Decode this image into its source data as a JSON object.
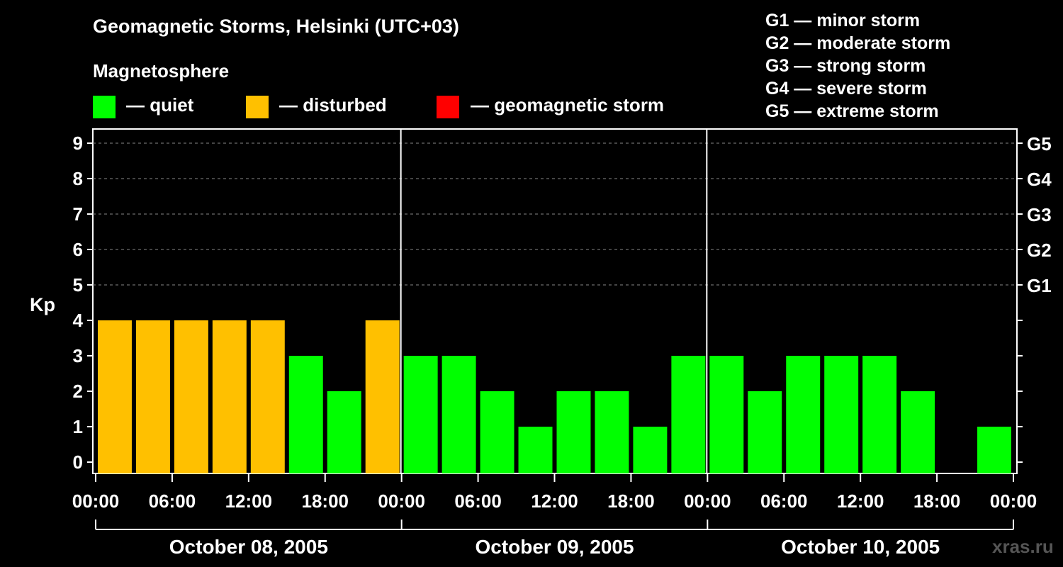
{
  "header": {
    "title": "Geomagnetic Storms, Helsinki (UTC+03)",
    "magnetosphere_label": "Magnetosphere"
  },
  "legend": {
    "items": [
      {
        "label": "— quiet",
        "color": "#00ff00"
      },
      {
        "label": "— disturbed",
        "color": "#ffc000"
      },
      {
        "label": "— geomagnetic storm",
        "color": "#ff0000"
      }
    ]
  },
  "storm_scale": [
    "G1 — minor storm",
    "G2 — moderate storm",
    "G3 — strong storm",
    "G4 — severe storm",
    "G5 — extreme storm"
  ],
  "watermark": "xras.ru",
  "chart_data": {
    "type": "bar",
    "ylabel": "Kp",
    "ylim": [
      0,
      9
    ],
    "yticks": [
      "0",
      "1",
      "2",
      "3",
      "4",
      "5",
      "6",
      "7",
      "8",
      "9"
    ],
    "right_ticks": [
      {
        "value": 5,
        "label": "G1"
      },
      {
        "value": 6,
        "label": "G2"
      },
      {
        "value": 7,
        "label": "G3"
      },
      {
        "value": 8,
        "label": "G4"
      },
      {
        "value": 9,
        "label": "G5"
      }
    ],
    "grid": "dashed horizontal at 5-9",
    "days": [
      {
        "label": "October 08, 2005",
        "values": [
          4,
          4,
          4,
          4,
          4,
          3,
          2,
          4
        ]
      },
      {
        "label": "October 09, 2005",
        "values": [
          3,
          3,
          2,
          1,
          2,
          2,
          1,
          3
        ]
      },
      {
        "label": "October 10, 2005",
        "values": [
          3,
          2,
          3,
          3,
          3,
          2,
          0,
          1
        ]
      }
    ],
    "interval_hours": 3,
    "xticks": [
      "00:00",
      "06:00",
      "12:00",
      "18:00",
      "00:00",
      "06:00",
      "12:00",
      "18:00",
      "00:00",
      "06:00",
      "12:00",
      "18:00",
      "00:00"
    ],
    "color_rule": {
      "quiet_max": 3,
      "disturbed_max": 4,
      "quiet_color": "#00ff00",
      "disturbed_color": "#ffc000",
      "storm_color": "#ff0000"
    }
  }
}
